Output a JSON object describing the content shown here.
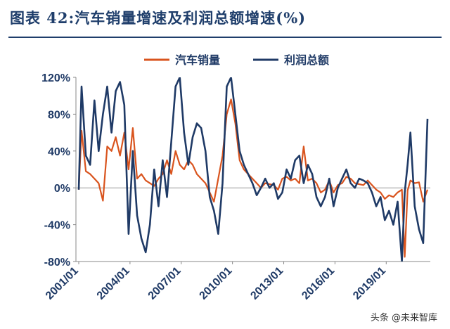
{
  "title": "图表 42:汽车销量增速及利润总额增速(%)",
  "watermark": "头条 @未来智库",
  "chart_data": {
    "type": "line",
    "title": "图表 42:汽车销量增速及利润总额增速(%)",
    "xlabel": "",
    "ylabel": "",
    "ylim": [
      -80,
      120
    ],
    "yticks": [
      -80,
      -40,
      0,
      40,
      80,
      120
    ],
    "ytick_labels": [
      "-80%",
      "-40%",
      "0%",
      "40%",
      "80%",
      "120%"
    ],
    "xticks": [
      "2001/01",
      "2004/01",
      "2007/01",
      "2010/01",
      "2013/01",
      "2016/01",
      "2019/01"
    ],
    "grid": false,
    "legend_position": "top-center",
    "series": [
      {
        "name": "汽车销量",
        "color": "#d9541e",
        "x": [
          "2001/01",
          "2001/03",
          "2001/06",
          "2001/09",
          "2001/12",
          "2002/03",
          "2002/06",
          "2002/09",
          "2002/12",
          "2003/03",
          "2003/06",
          "2003/09",
          "2003/12",
          "2004/03",
          "2004/06",
          "2004/09",
          "2004/12",
          "2005/03",
          "2005/06",
          "2005/09",
          "2005/12",
          "2006/03",
          "2006/06",
          "2006/09",
          "2006/12",
          "2007/03",
          "2007/06",
          "2007/09",
          "2007/12",
          "2008/03",
          "2008/06",
          "2008/09",
          "2008/12",
          "2009/03",
          "2009/06",
          "2009/09",
          "2009/12",
          "2010/03",
          "2010/06",
          "2010/09",
          "2010/12",
          "2011/03",
          "2011/06",
          "2011/09",
          "2011/12",
          "2012/03",
          "2012/06",
          "2012/09",
          "2012/12",
          "2013/03",
          "2013/06",
          "2013/09",
          "2013/12",
          "2014/03",
          "2014/06",
          "2014/09",
          "2014/12",
          "2015/03",
          "2015/06",
          "2015/09",
          "2015/12",
          "2016/03",
          "2016/06",
          "2016/09",
          "2016/12",
          "2017/03",
          "2017/06",
          "2017/09",
          "2017/12",
          "2018/03",
          "2018/06",
          "2018/09",
          "2018/12",
          "2019/03",
          "2019/06",
          "2019/09",
          "2019/12",
          "2020/02",
          "2020/04",
          "2020/06",
          "2020/09",
          "2020/12",
          "2021/03",
          "2021/06"
        ],
        "values": [
          -2,
          62,
          18,
          15,
          10,
          5,
          -14,
          45,
          40,
          55,
          35,
          60,
          20,
          65,
          10,
          15,
          8,
          5,
          2,
          10,
          15,
          30,
          15,
          40,
          25,
          20,
          30,
          25,
          15,
          10,
          5,
          -5,
          -15,
          10,
          35,
          80,
          96,
          70,
          30,
          20,
          15,
          10,
          5,
          0,
          5,
          4,
          3,
          -2,
          10,
          12,
          8,
          10,
          5,
          45,
          8,
          10,
          5,
          -5,
          -2,
          8,
          -5,
          3,
          5,
          12,
          10,
          5,
          4,
          3,
          8,
          3,
          -2,
          -5,
          -12,
          -8,
          -10,
          -5,
          -2,
          -75,
          -3,
          8,
          5,
          6,
          -15,
          -2
        ]
      },
      {
        "name": "利润总额",
        "color": "#1f3a66",
        "x": [
          "2001/01",
          "2001/03",
          "2001/06",
          "2001/09",
          "2001/12",
          "2002/03",
          "2002/06",
          "2002/09",
          "2002/12",
          "2003/03",
          "2003/06",
          "2003/09",
          "2003/12",
          "2004/03",
          "2004/06",
          "2004/09",
          "2004/12",
          "2005/03",
          "2005/06",
          "2005/09",
          "2005/12",
          "2006/03",
          "2006/06",
          "2006/09",
          "2006/12",
          "2007/03",
          "2007/06",
          "2007/09",
          "2007/12",
          "2008/03",
          "2008/06",
          "2008/09",
          "2008/12",
          "2009/03",
          "2009/06",
          "2009/09",
          "2009/12",
          "2010/03",
          "2010/06",
          "2010/09",
          "2010/12",
          "2011/03",
          "2011/06",
          "2011/09",
          "2011/12",
          "2012/03",
          "2012/06",
          "2012/09",
          "2012/12",
          "2013/03",
          "2013/06",
          "2013/09",
          "2013/12",
          "2014/03",
          "2014/06",
          "2014/09",
          "2014/12",
          "2015/03",
          "2015/06",
          "2015/09",
          "2015/12",
          "2016/03",
          "2016/06",
          "2016/09",
          "2016/12",
          "2017/03",
          "2017/06",
          "2017/09",
          "2017/12",
          "2018/03",
          "2018/06",
          "2018/09",
          "2018/12",
          "2019/03",
          "2019/06",
          "2019/09",
          "2019/12",
          "2020/02",
          "2020/04",
          "2020/06",
          "2020/09",
          "2020/12",
          "2021/03",
          "2021/06"
        ],
        "values": [
          -2,
          110,
          35,
          25,
          95,
          40,
          80,
          110,
          60,
          105,
          115,
          90,
          -50,
          40,
          -30,
          -55,
          -70,
          -40,
          20,
          -20,
          30,
          -10,
          50,
          110,
          130,
          60,
          25,
          55,
          70,
          65,
          40,
          -10,
          -25,
          -50,
          5,
          110,
          145,
          80,
          40,
          25,
          15,
          5,
          -8,
          0,
          10,
          0,
          5,
          -12,
          -5,
          20,
          10,
          30,
          35,
          5,
          25,
          15,
          -10,
          -20,
          -10,
          10,
          -20,
          0,
          10,
          20,
          5,
          0,
          10,
          8,
          5,
          -5,
          -20,
          -10,
          -35,
          -25,
          -40,
          -15,
          -80,
          -5,
          25,
          60,
          -20,
          -45,
          -60,
          75
        ]
      }
    ]
  }
}
